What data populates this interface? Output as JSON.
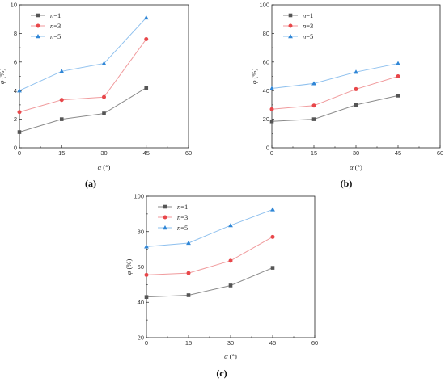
{
  "colors": {
    "n1": "#555555",
    "n3": "#e8474a",
    "n5": "#2f86d6",
    "n1_line": "#8a8a8a",
    "n3_line": "#f09a9c",
    "n5_line": "#8ec0ee"
  },
  "chart_data": [
    {
      "panel": "(a)",
      "type": "line",
      "xlabel": "α (°)",
      "ylabel": "φ (%)",
      "xlim": [
        0,
        60
      ],
      "ylim": [
        0,
        10
      ],
      "xticks": [
        "0",
        "15",
        "30",
        "45",
        "60"
      ],
      "yticks": [
        "0",
        "2",
        "4",
        "6",
        "8",
        "10"
      ],
      "legend_position": "top-left",
      "x": [
        0,
        15,
        30,
        45
      ],
      "series": [
        {
          "name": "n=1",
          "name_var": "n",
          "name_val": "=1",
          "marker": "square",
          "values": [
            1.1,
            2.0,
            2.4,
            4.2
          ]
        },
        {
          "name": "n=3",
          "name_var": "n",
          "name_val": "=3",
          "marker": "circle",
          "values": [
            2.5,
            3.35,
            3.55,
            7.6
          ]
        },
        {
          "name": "n=5",
          "name_var": "n",
          "name_val": "=5",
          "marker": "triangle",
          "values": [
            4.0,
            5.35,
            5.9,
            9.1
          ]
        }
      ]
    },
    {
      "panel": "(b)",
      "type": "line",
      "xlabel": "α (°)",
      "ylabel": "φ (%)",
      "xlim": [
        0,
        60
      ],
      "ylim": [
        0,
        100
      ],
      "xticks": [
        "0",
        "15",
        "30",
        "45",
        "60"
      ],
      "yticks": [
        "0",
        "20",
        "40",
        "60",
        "80",
        "100"
      ],
      "legend_position": "top-left",
      "x": [
        0,
        15,
        30,
        45
      ],
      "series": [
        {
          "name": "n=1",
          "name_var": "n",
          "name_val": "=1",
          "marker": "square",
          "values": [
            18.5,
            20,
            30,
            36.5
          ]
        },
        {
          "name": "n=3",
          "name_var": "n",
          "name_val": "=3",
          "marker": "circle",
          "values": [
            27,
            29.5,
            41,
            50
          ]
        },
        {
          "name": "n=5",
          "name_var": "n",
          "name_val": "=5",
          "marker": "triangle",
          "values": [
            41.5,
            45,
            53,
            59
          ]
        }
      ]
    },
    {
      "panel": "(c)",
      "type": "line",
      "xlabel": "α (°)",
      "ylabel": "φ (%)",
      "xlim": [
        0,
        60
      ],
      "ylim": [
        20,
        100
      ],
      "xticks": [
        "0",
        "15",
        "30",
        "45",
        "60"
      ],
      "yticks": [
        "20",
        "40",
        "60",
        "80",
        "100"
      ],
      "legend_position": "top-left",
      "x": [
        0,
        15,
        30,
        45
      ],
      "series": [
        {
          "name": "n=1",
          "name_var": "n",
          "name_val": "=1",
          "marker": "square",
          "values": [
            43,
            44,
            49.5,
            59.5
          ]
        },
        {
          "name": "n=3",
          "name_var": "n",
          "name_val": "=3",
          "marker": "circle",
          "values": [
            55.5,
            56.5,
            63.5,
            77
          ]
        },
        {
          "name": "n=5",
          "name_var": "n",
          "name_val": "=5",
          "marker": "triangle",
          "values": [
            71.5,
            73.5,
            83.5,
            92.5
          ]
        }
      ]
    }
  ]
}
